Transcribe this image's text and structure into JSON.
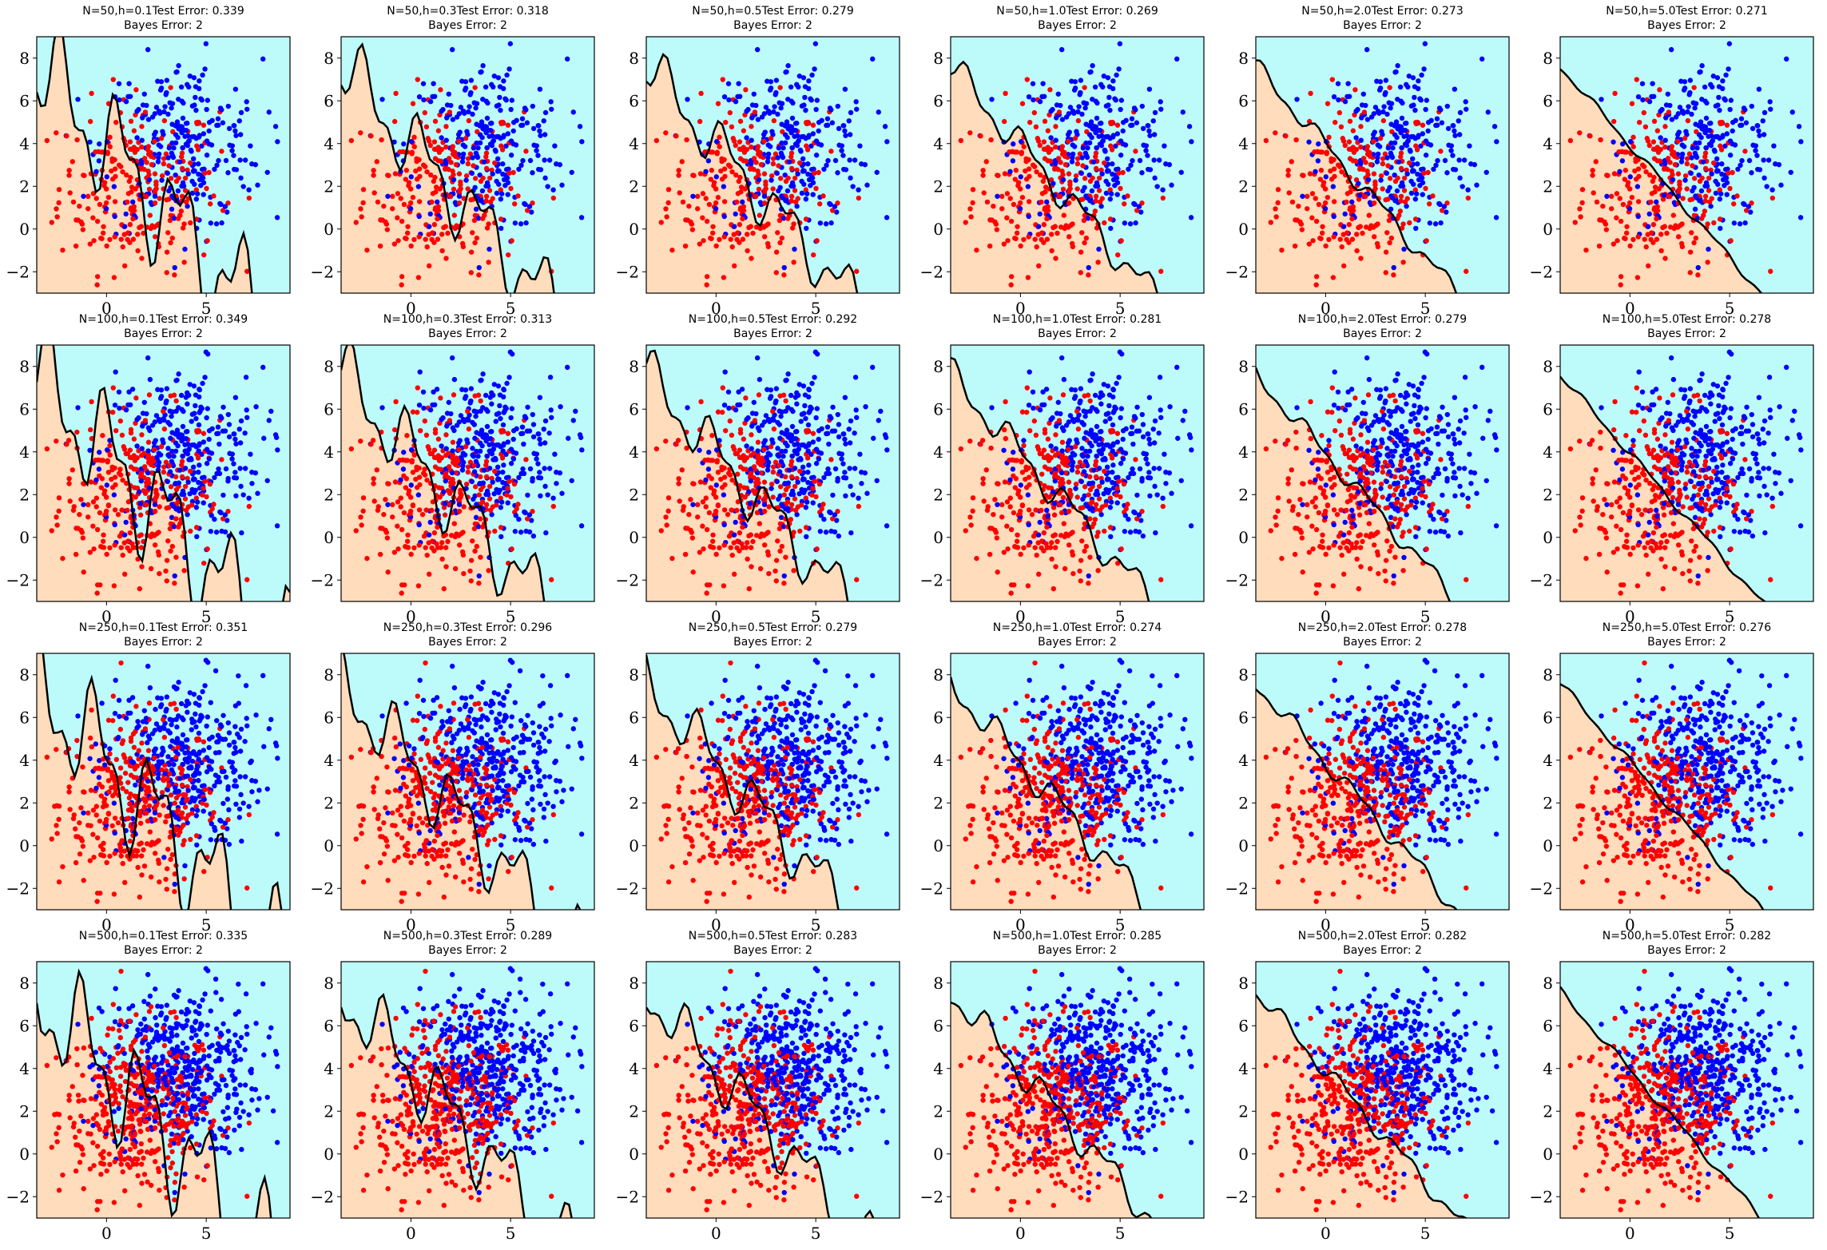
{
  "figure": {
    "colors": {
      "class0_region": "#ffdcbc",
      "class1_region": "#bdfbfb",
      "class0_points": "#ff0000",
      "class1_points": "#0000ff",
      "boundary": "#000000",
      "axes": "#000000"
    }
  },
  "chart_data": {
    "type": "scatter",
    "description_rows": "sample size N",
    "description_cols": "bandwidth h",
    "rows": [
      50,
      100,
      250,
      500
    ],
    "cols": [
      0.1,
      0.3,
      0.5,
      1.0,
      2.0,
      5.0
    ],
    "xlim": [
      -3.5,
      9.2
    ],
    "ylim": [
      -3.0,
      9.0
    ],
    "xticks": [
      0,
      5
    ],
    "yticks": [
      -2,
      0,
      2,
      4,
      6,
      8
    ],
    "class0_center": [
      1.6,
      2.0
    ],
    "class1_center": [
      3.8,
      3.9
    ],
    "panels": [
      {
        "title": "N=50,h=0.1Test Error:  0.339",
        "subtitle": "Bayes Error:  2"
      },
      {
        "title": "N=50,h=0.3Test Error:  0.318",
        "subtitle": "Bayes Error:  2"
      },
      {
        "title": "N=50,h=0.5Test Error:  0.279",
        "subtitle": "Bayes Error:  2"
      },
      {
        "title": "N=50,h=1.0Test Error:  0.269",
        "subtitle": "Bayes Error:  2"
      },
      {
        "title": "N=50,h=2.0Test Error:  0.273",
        "subtitle": "Bayes Error:  2"
      },
      {
        "title": "N=50,h=5.0Test Error:  0.271",
        "subtitle": "Bayes Error:  2"
      },
      {
        "title": "N=100,h=0.1Test Error:  0.349",
        "subtitle": "Bayes Error:  2"
      },
      {
        "title": "N=100,h=0.3Test Error:  0.313",
        "subtitle": "Bayes Error:  2"
      },
      {
        "title": "N=100,h=0.5Test Error:  0.292",
        "subtitle": "Bayes Error:  2"
      },
      {
        "title": "N=100,h=1.0Test Error:  0.281",
        "subtitle": "Bayes Error:  2"
      },
      {
        "title": "N=100,h=2.0Test Error:  0.279",
        "subtitle": "Bayes Error:  2"
      },
      {
        "title": "N=100,h=5.0Test Error:  0.278",
        "subtitle": "Bayes Error:  2"
      },
      {
        "title": "N=250,h=0.1Test Error:  0.351",
        "subtitle": "Bayes Error:  2"
      },
      {
        "title": "N=250,h=0.3Test Error:  0.296",
        "subtitle": "Bayes Error:  2"
      },
      {
        "title": "N=250,h=0.5Test Error:  0.279",
        "subtitle": "Bayes Error:  2"
      },
      {
        "title": "N=250,h=1.0Test Error:  0.274",
        "subtitle": "Bayes Error:  2"
      },
      {
        "title": "N=250,h=2.0Test Error:  0.278",
        "subtitle": "Bayes Error:  2"
      },
      {
        "title": "N=250,h=5.0Test Error:  0.276",
        "subtitle": "Bayes Error:  2"
      },
      {
        "title": "N=500,h=0.1Test Error:  0.335",
        "subtitle": "Bayes Error:  2"
      },
      {
        "title": "N=500,h=0.3Test Error:  0.289",
        "subtitle": "Bayes Error:  2"
      },
      {
        "title": "N=500,h=0.5Test Error:  0.283",
        "subtitle": "Bayes Error:  2"
      },
      {
        "title": "N=500,h=1.0Test Error:  0.285",
        "subtitle": "Bayes Error:  2"
      },
      {
        "title": "N=500,h=2.0Test Error:  0.282",
        "subtitle": "Bayes Error:  2"
      },
      {
        "title": "N=500,h=5.0Test Error:  0.282",
        "subtitle": "Bayes Error:  2"
      }
    ]
  }
}
